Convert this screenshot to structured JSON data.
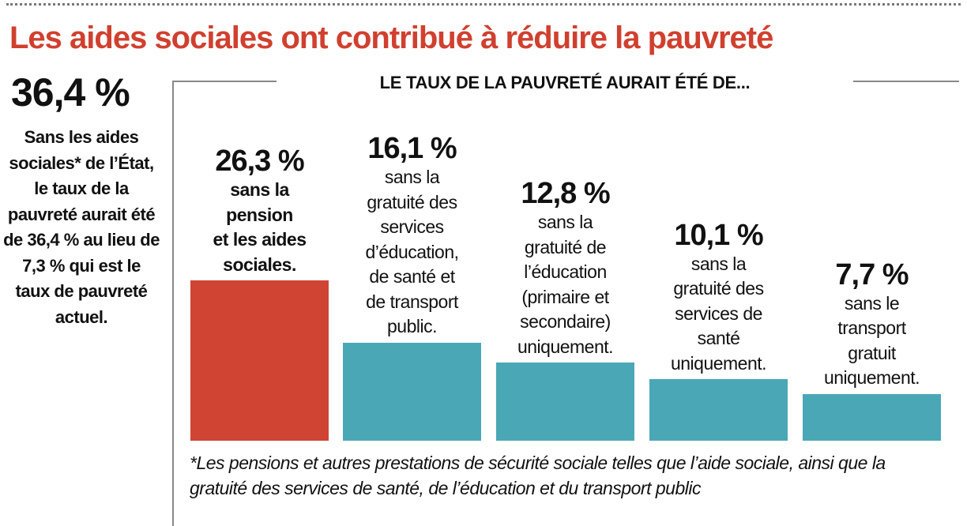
{
  "title": "Les aides sociales ont contribué à réduire la pauvreté",
  "side": {
    "value": "36,4 %",
    "text": "Sans les aides sociales* de l’État, le taux de la pauvreté aurait été de 36,4 % au lieu de 7,3 % qui est le taux de pauvreté actuel."
  },
  "chart_data": {
    "type": "bar",
    "title": "LE TAUX DE LA PAUVRETÉ AURAIT ÉTÉ DE...",
    "categories": [
      "sans la pension et les aides sociales.",
      "sans la gratuité des services d’éducation, de santé et de transport public.",
      "sans la gratuité de l’éducation (primaire et secondaire) uniquement.",
      "sans la gratuité des services de santé uniquement.",
      "sans le transport gratuit uniquement."
    ],
    "values": [
      26.3,
      16.1,
      12.8,
      10.1,
      7.7
    ],
    "value_labels": [
      "26,3 %",
      "16,1 %",
      "12,8 %",
      "10,1 %",
      "7,7 %"
    ],
    "label_lines": [
      [
        "sans la",
        "pension",
        "et les aides",
        "sociales."
      ],
      [
        "sans la",
        "gratuité des",
        "services",
        "d’éducation,",
        "de santé et",
        "de transport",
        "public."
      ],
      [
        "sans la",
        "gratuité de",
        "l’éducation",
        "(primaire et",
        "secondaire)",
        "uniquement."
      ],
      [
        "sans la",
        "gratuité des",
        "services de",
        "santé",
        "uniquement."
      ],
      [
        "sans le",
        "transport",
        "gratuit",
        "uniquement."
      ]
    ],
    "colors": [
      "#cf4433",
      "#4aa8b6",
      "#4aa8b6",
      "#4aa8b6",
      "#4aa8b6"
    ],
    "ylim": [
      0,
      26.3
    ],
    "grid": false
  },
  "footnote": "*Les pensions et autres prestations de sécurité sociale telles que l’aide sociale, ainsi que la gratuité des services de santé, de l’éducation et du transport public"
}
